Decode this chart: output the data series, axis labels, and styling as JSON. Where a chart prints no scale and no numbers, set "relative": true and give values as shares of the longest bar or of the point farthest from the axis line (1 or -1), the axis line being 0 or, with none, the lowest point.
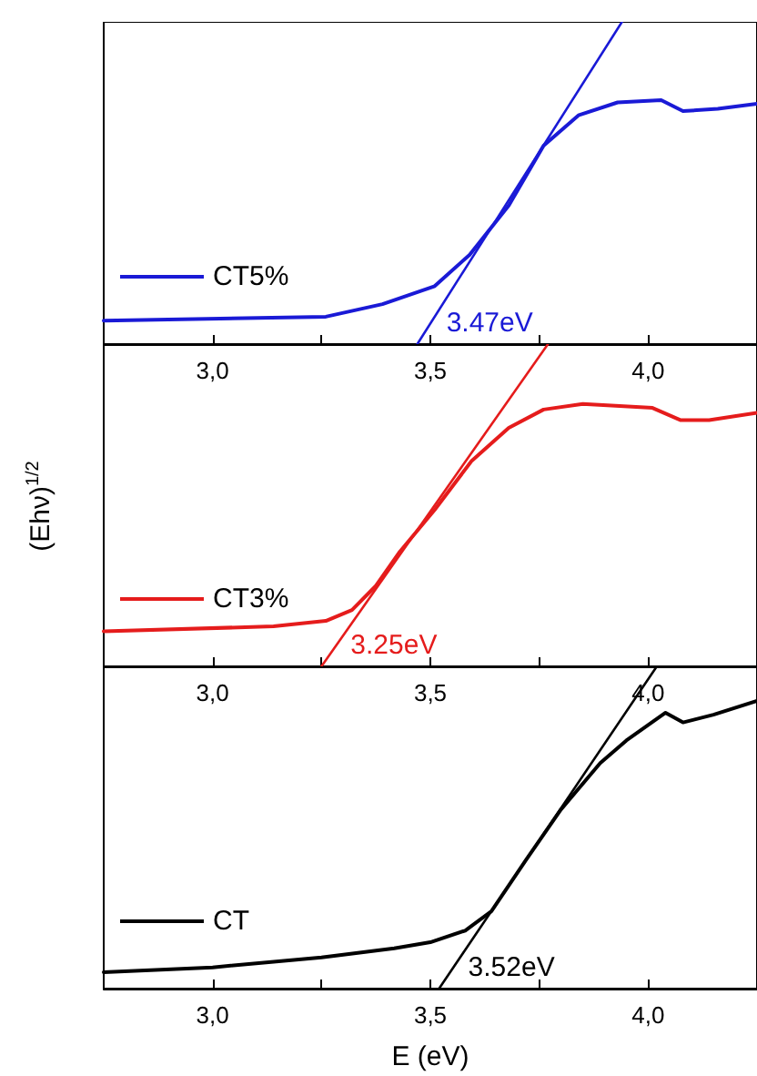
{
  "chart_data": [
    {
      "type": "line",
      "relative": true,
      "xlim": [
        2.75,
        4.25
      ],
      "xticks": [
        {
          "value": 3,
          "label": "3,0"
        },
        {
          "value": 3.25,
          "label": null
        },
        {
          "value": 3.5,
          "label": "3,5"
        },
        {
          "value": 3.75,
          "label": null
        },
        {
          "value": 4,
          "label": "4,0"
        }
      ],
      "tick_labels": "x",
      "legend": "bottom left",
      "marker": "none",
      "series": [
        {
          "name": "CT5%",
          "color": "#1a1ad6",
          "x": [
            2.75,
            3.26,
            3.39,
            3.51,
            3.59,
            3.68,
            3.76,
            3.84,
            3.93,
            4.03,
            4.08,
            4.16,
            4.25
          ],
          "values": [
            0.073,
            0.085,
            0.124,
            0.18,
            0.277,
            0.43,
            0.616,
            0.71,
            0.75,
            0.757,
            0.723,
            0.73,
            0.746
          ]
        },
        {
          "color": "#1a1ad6",
          "x": [
            3.47,
            3.94
          ],
          "values": [
            0,
            1
          ]
        }
      ],
      "annotations": [
        {
          "text": "3.47eV",
          "x": 3.47,
          "y": 0
        }
      ]
    },
    {
      "type": "line",
      "relative": true,
      "xlim": [
        2.75,
        4.25
      ],
      "xticks": [
        {
          "value": 3,
          "label": "3,0"
        },
        {
          "value": 3.25,
          "label": null
        },
        {
          "value": 3.5,
          "label": "3,5"
        },
        {
          "value": 3.75,
          "label": null
        },
        {
          "value": 4,
          "label": "4,0"
        }
      ],
      "tick_labels": "x",
      "legend": "bottom left",
      "marker": "none",
      "ylabel": "(Ehν)$^{1/2}$",
      "series": [
        {
          "name": "CT3%",
          "color": "#e51c1c",
          "x": [
            2.75,
            3.14,
            3.26,
            3.32,
            3.375,
            3.43,
            3.51,
            3.595,
            3.68,
            3.76,
            3.85,
            4.01,
            4.075,
            4.14,
            4.25
          ],
          "values": [
            0.109,
            0.124,
            0.141,
            0.175,
            0.25,
            0.356,
            0.486,
            0.638,
            0.74,
            0.797,
            0.814,
            0.802,
            0.764,
            0.764,
            0.787
          ]
        },
        {
          "color": "#e51c1c",
          "x": [
            3.25,
            3.77
          ],
          "values": [
            0,
            1
          ]
        }
      ],
      "annotations": [
        {
          "text": "3.25eV",
          "x": 3.25,
          "y": 0
        }
      ]
    },
    {
      "type": "line",
      "relative": true,
      "xlim": [
        2.75,
        4.25
      ],
      "xticks": [
        {
          "value": 3,
          "label": "3,0"
        },
        {
          "value": 3.25,
          "label": null
        },
        {
          "value": 3.5,
          "label": "3,5"
        },
        {
          "value": 3.75,
          "label": null
        },
        {
          "value": 4,
          "label": "4,0"
        }
      ],
      "tick_labels": "x",
      "legend": "bottom left",
      "marker": "none",
      "xlabel": "E (eV)",
      "series": [
        {
          "name": "CT",
          "color": "#000000",
          "x": [
            2.75,
            3.0,
            3.25,
            3.417,
            3.5,
            3.58,
            3.64,
            3.72,
            3.8,
            3.89,
            3.95,
            4.04,
            4.08,
            4.15,
            4.25
          ],
          "values": [
            0.051,
            0.066,
            0.097,
            0.125,
            0.144,
            0.18,
            0.24,
            0.4,
            0.556,
            0.7,
            0.77,
            0.856,
            0.826,
            0.85,
            0.893
          ]
        },
        {
          "color": "#000000",
          "x": [
            3.52,
            4.02
          ],
          "values": [
            0,
            1
          ]
        }
      ],
      "annotations": [
        {
          "text": "3.52eV",
          "x": 3.52,
          "y": 0
        }
      ]
    }
  ]
}
